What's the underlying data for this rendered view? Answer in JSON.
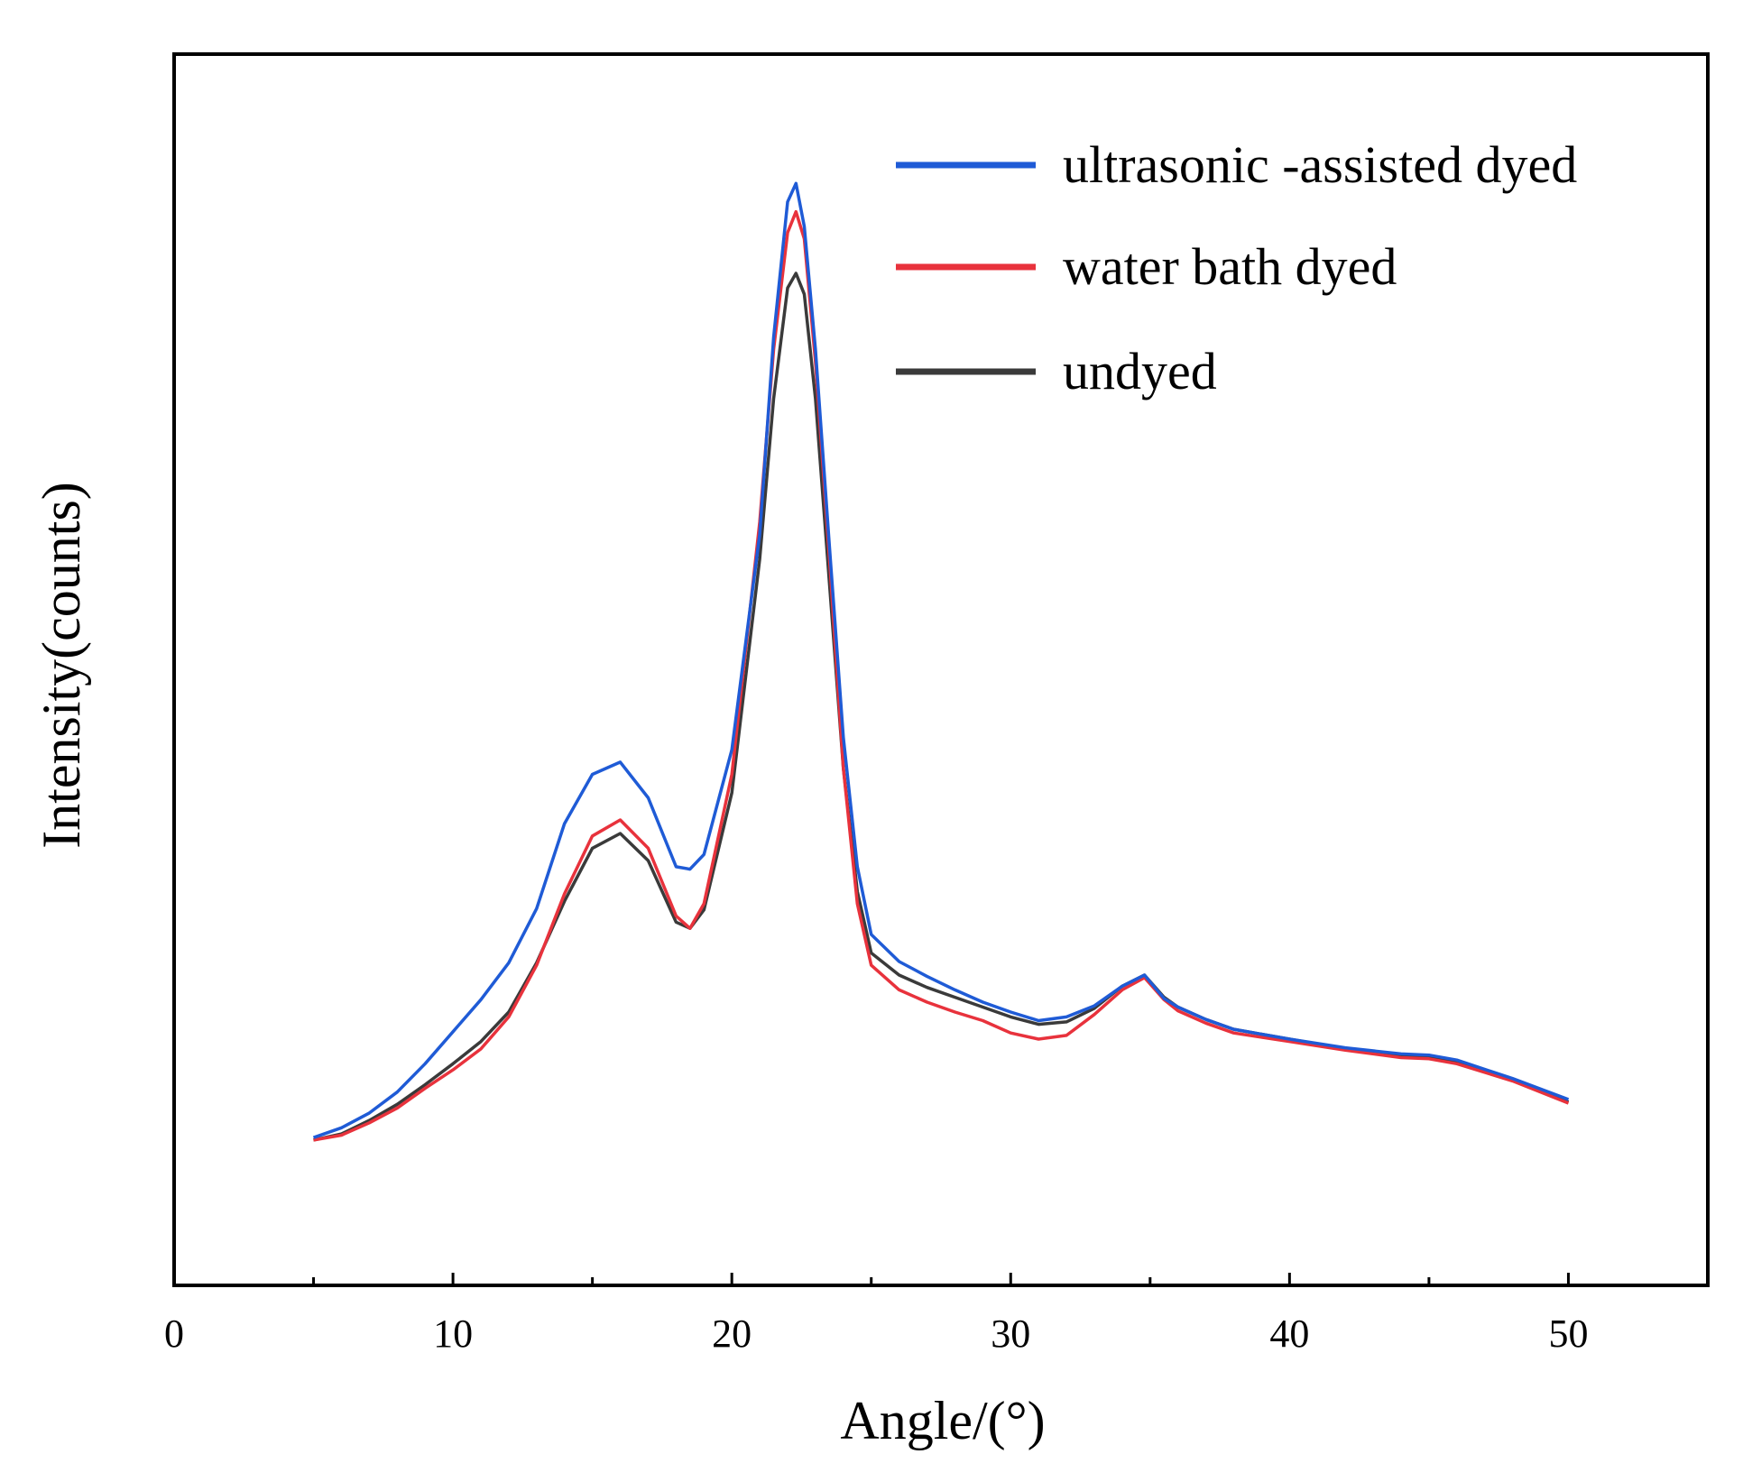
{
  "chart_data": {
    "type": "line",
    "title": "",
    "xlabel": "Angle/(°)",
    "ylabel": "Intensity(counts)",
    "xlim": [
      0,
      55
    ],
    "ylim": [
      0,
      1
    ],
    "xticks": [
      0,
      10,
      20,
      30,
      40,
      50
    ],
    "xtick_labels": [
      "0",
      "10",
      "20",
      "30",
      "40",
      "50"
    ],
    "x_minor_ticks": [
      5,
      15,
      25,
      35,
      45
    ],
    "yticks_shown": false,
    "grid": false,
    "legend_position": "top-right",
    "series": [
      {
        "name": "ultrasonic -assisted dyed",
        "color": "#1f5bd6",
        "x": [
          5,
          6,
          7,
          8,
          9,
          10,
          11,
          12,
          13,
          14,
          15,
          16,
          17,
          18,
          18.5,
          19,
          20,
          21,
          21.5,
          22,
          22.3,
          22.6,
          23,
          23.5,
          24,
          24.5,
          25,
          26,
          27,
          28,
          29,
          30,
          31,
          32,
          33,
          34,
          34.8,
          35.5,
          36,
          37,
          38,
          40,
          42,
          44,
          45,
          46,
          48,
          50
        ],
        "values": [
          0.12,
          0.128,
          0.14,
          0.157,
          0.18,
          0.206,
          0.232,
          0.262,
          0.306,
          0.375,
          0.415,
          0.425,
          0.396,
          0.34,
          0.338,
          0.35,
          0.435,
          0.61,
          0.77,
          0.88,
          0.895,
          0.86,
          0.76,
          0.6,
          0.445,
          0.34,
          0.285,
          0.263,
          0.251,
          0.24,
          0.23,
          0.222,
          0.215,
          0.218,
          0.227,
          0.243,
          0.252,
          0.233,
          0.226,
          0.216,
          0.208,
          0.2,
          0.193,
          0.188,
          0.187,
          0.183,
          0.168,
          0.151
        ]
      },
      {
        "name": "water bath dyed",
        "color": "#e8323c",
        "x": [
          5,
          6,
          7,
          8,
          9,
          10,
          11,
          12,
          13,
          14,
          15,
          16,
          17,
          18,
          18.5,
          19,
          20,
          21,
          21.5,
          22,
          22.3,
          22.6,
          23,
          23.5,
          24,
          24.5,
          25,
          26,
          27,
          28,
          29,
          30,
          31,
          32,
          33,
          34,
          34.8,
          35.5,
          36,
          37,
          38,
          40,
          42,
          44,
          45,
          46,
          48,
          50
        ],
        "values": [
          0.118,
          0.122,
          0.132,
          0.144,
          0.16,
          0.175,
          0.192,
          0.218,
          0.26,
          0.318,
          0.365,
          0.378,
          0.355,
          0.3,
          0.29,
          0.31,
          0.415,
          0.62,
          0.76,
          0.855,
          0.872,
          0.85,
          0.75,
          0.59,
          0.42,
          0.31,
          0.26,
          0.24,
          0.23,
          0.222,
          0.215,
          0.205,
          0.2,
          0.203,
          0.22,
          0.24,
          0.25,
          0.232,
          0.223,
          0.213,
          0.205,
          0.198,
          0.191,
          0.185,
          0.184,
          0.18,
          0.166,
          0.148
        ]
      },
      {
        "name": "undyed",
        "color": "#3a3a3a",
        "x": [
          5,
          6,
          7,
          8,
          9,
          10,
          11,
          12,
          13,
          14,
          15,
          16,
          17,
          18,
          18.5,
          19,
          20,
          21,
          21.5,
          22,
          22.3,
          22.6,
          23,
          23.5,
          24,
          24.5,
          25,
          26,
          27,
          28,
          29,
          30,
          31,
          32,
          33,
          34,
          34.8,
          35.5,
          36,
          37,
          38,
          40,
          42,
          44,
          45,
          46,
          48,
          50
        ],
        "values": [
          0.118,
          0.123,
          0.134,
          0.147,
          0.163,
          0.18,
          0.198,
          0.222,
          0.262,
          0.312,
          0.355,
          0.367,
          0.345,
          0.295,
          0.29,
          0.305,
          0.4,
          0.59,
          0.72,
          0.81,
          0.822,
          0.805,
          0.72,
          0.57,
          0.42,
          0.32,
          0.27,
          0.252,
          0.242,
          0.234,
          0.226,
          0.218,
          0.212,
          0.214,
          0.225,
          0.243,
          0.252,
          0.234,
          0.226,
          0.216,
          0.208,
          0.2,
          0.192,
          0.186,
          0.185,
          0.181,
          0.167,
          0.149
        ]
      }
    ]
  }
}
